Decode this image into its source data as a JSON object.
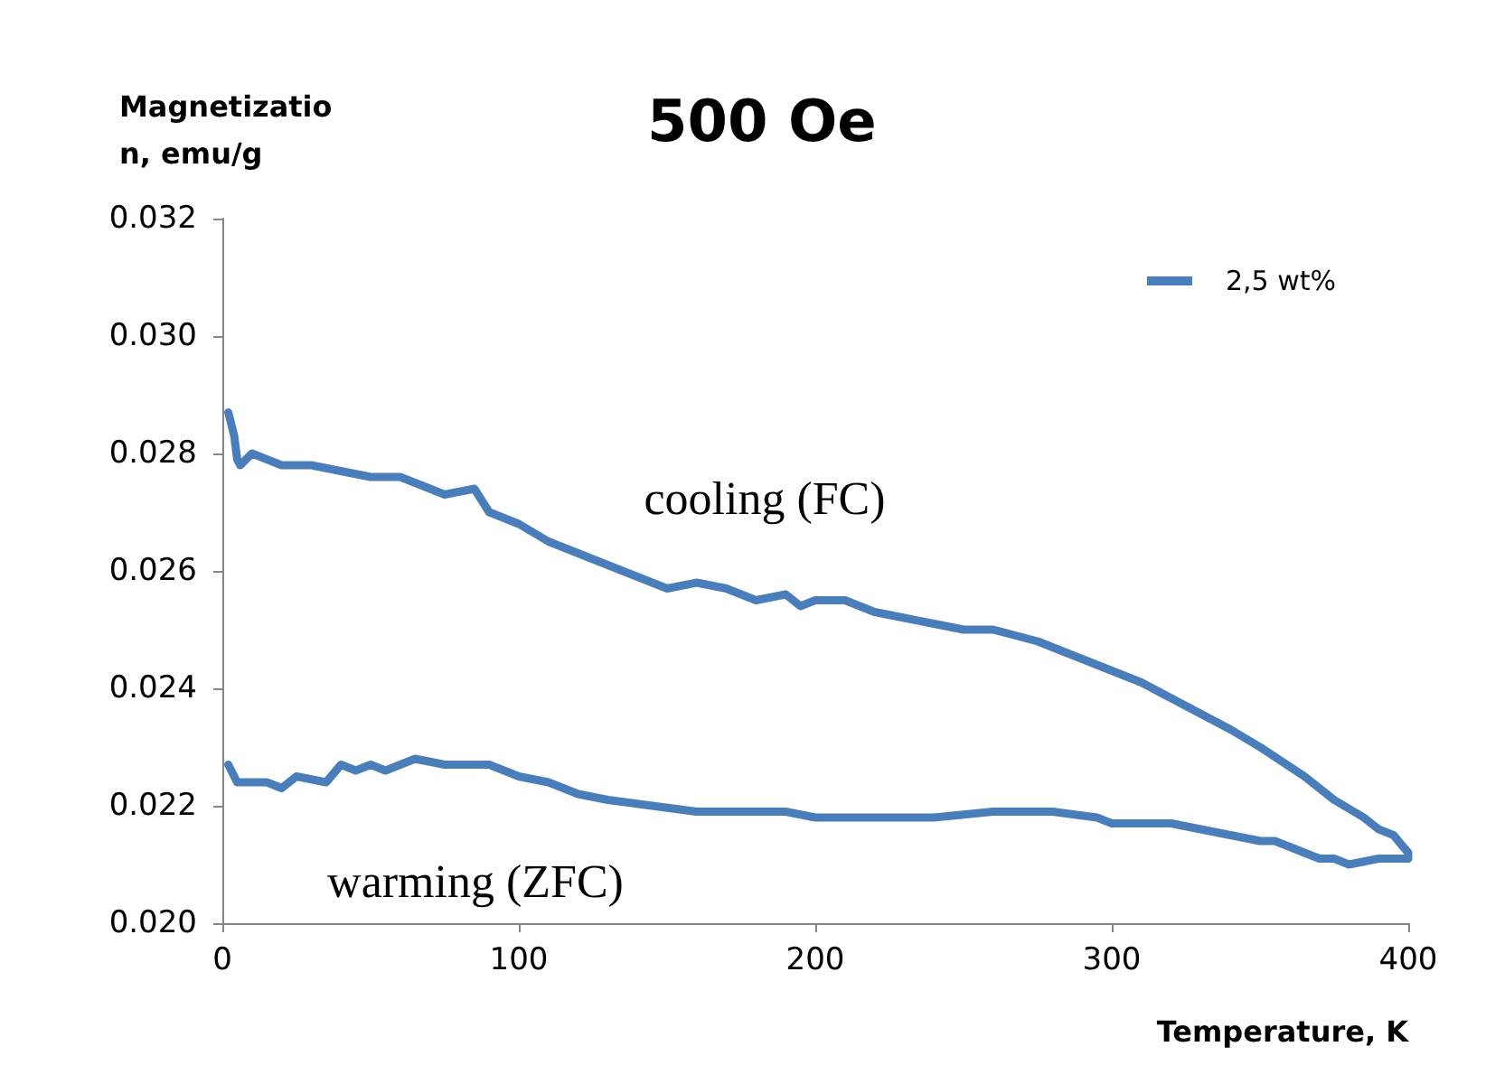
{
  "chart_data": {
    "type": "line",
    "title": "500 Oe",
    "xlabel": "Temperature, K",
    "ylabel": "Magnetization, emu/g",
    "xlim": [
      0,
      400
    ],
    "xticks": [
      0,
      100,
      200,
      300,
      400
    ],
    "ylim": [
      0.02,
      0.032
    ],
    "yticks": [
      {
        "value": 0.02,
        "label": "0.020"
      },
      0.022,
      0.024,
      0.026,
      0.028,
      {
        "value": 0.03,
        "label": "0.030"
      },
      0.032
    ],
    "grid": false,
    "legend": "top right",
    "marker": "none",
    "line_style": "solid",
    "annotations": [
      "cooling (FC)",
      "warming (ZFC)"
    ],
    "series": [
      {
        "name": "2,5 wt%",
        "color": "#4a7ebb",
        "x": [
          2,
          5,
          15,
          20,
          25,
          35,
          40,
          45,
          50,
          55,
          60,
          65,
          75,
          90,
          100,
          110,
          120,
          130,
          145,
          160,
          175,
          190,
          200,
          220,
          240,
          260,
          280,
          295,
          300,
          320,
          340,
          350,
          355,
          370,
          375,
          380,
          390,
          400,
          400,
          395,
          390,
          385,
          375,
          365,
          350,
          340,
          325,
          310,
          300,
          290,
          275,
          260,
          250,
          240,
          230,
          220,
          210,
          200,
          195,
          190,
          180,
          170,
          160,
          150,
          140,
          120,
          110,
          100,
          90,
          85,
          75,
          60,
          50,
          40,
          30,
          20,
          10,
          6,
          5,
          4,
          2
        ],
        "values": [
          0.0227,
          0.0224,
          0.0224,
          0.0223,
          0.0225,
          0.0224,
          0.0227,
          0.0226,
          0.0227,
          0.0226,
          0.0227,
          0.0228,
          0.0227,
          0.0227,
          0.0225,
          0.0224,
          0.0222,
          0.0221,
          0.022,
          0.0219,
          0.0219,
          0.0219,
          0.0218,
          0.0218,
          0.0218,
          0.0219,
          0.0219,
          0.0218,
          0.0217,
          0.0217,
          0.0215,
          0.0214,
          0.0214,
          0.0211,
          0.0211,
          0.021,
          0.0211,
          0.0211,
          0.0212,
          0.0215,
          0.0216,
          0.0218,
          0.0221,
          0.0225,
          0.023,
          0.0233,
          0.0237,
          0.0241,
          0.0243,
          0.0245,
          0.0248,
          0.025,
          0.025,
          0.0251,
          0.0252,
          0.0253,
          0.0255,
          0.0255,
          0.0254,
          0.0256,
          0.0255,
          0.0257,
          0.0258,
          0.0257,
          0.0259,
          0.0263,
          0.0265,
          0.0268,
          0.027,
          0.0274,
          0.0273,
          0.0276,
          0.0276,
          0.0277,
          0.0278,
          0.0278,
          0.028,
          0.0278,
          0.0279,
          0.0283,
          0.0287
        ]
      }
    ]
  }
}
